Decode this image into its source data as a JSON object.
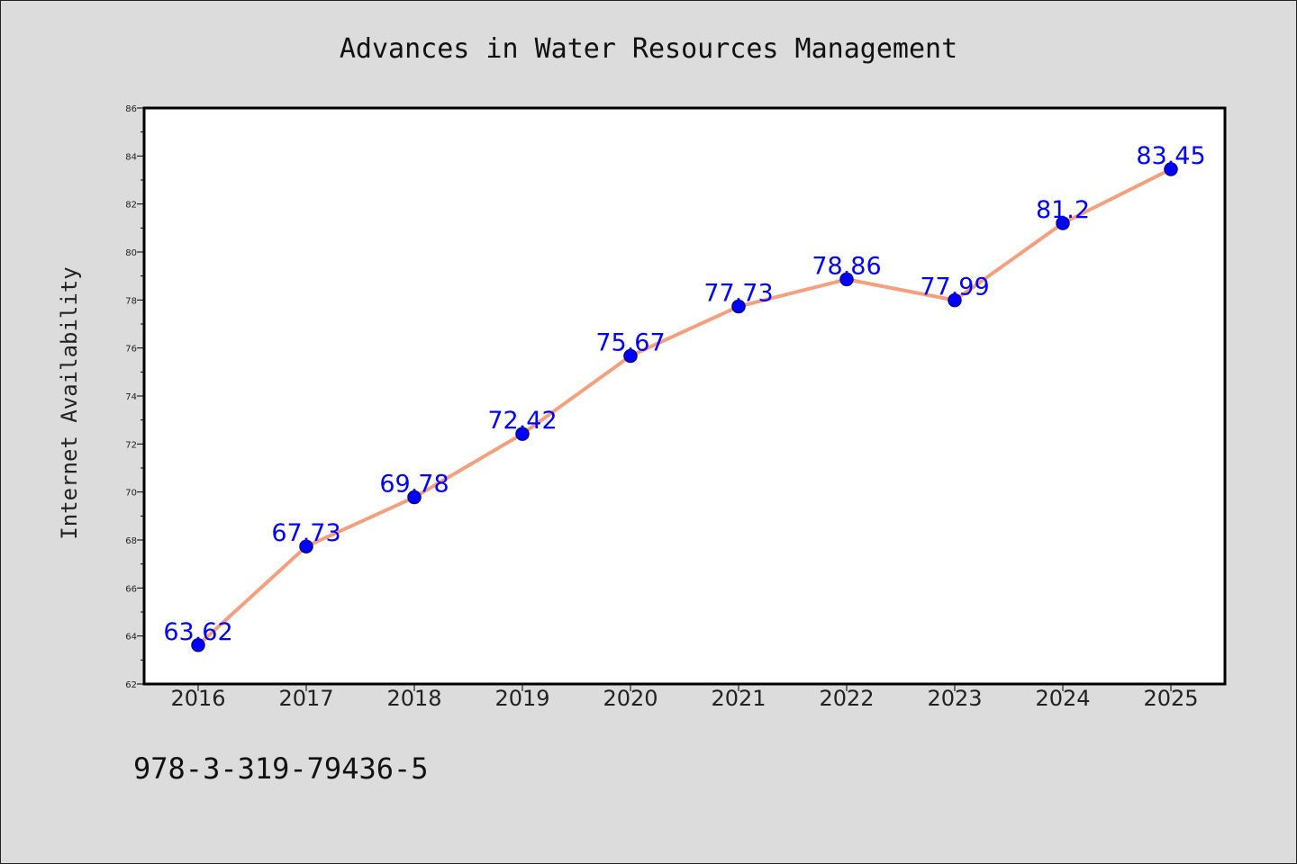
{
  "chart_data": {
    "type": "line",
    "title": "Advances in Water Resources Management",
    "ylabel": "Internet Availability",
    "xlabel": "",
    "categories": [
      "2016",
      "2017",
      "2018",
      "2019",
      "2020",
      "2021",
      "2022",
      "2023",
      "2024",
      "2025"
    ],
    "values": [
      63.62,
      67.73,
      69.78,
      72.42,
      75.67,
      77.73,
      78.86,
      77.99,
      81.2,
      83.45
    ],
    "data_labels": [
      "63.62",
      "67.73",
      "69.78",
      "72.42",
      "75.67",
      "77.73",
      "78.86",
      "77.99",
      "81.2",
      "83.45"
    ],
    "ylim": [
      62,
      86
    ],
    "yticks": [
      "62",
      "64",
      "66",
      "68",
      "70",
      "72",
      "74",
      "76",
      "78",
      "80",
      "82",
      "84",
      "86"
    ],
    "grid": false,
    "colors": {
      "line": "#f4a07f",
      "marker": "#0000ff",
      "marker_edge": "#00008b",
      "data_label": "#0000ff",
      "background": "#dcdcdc",
      "plot_area": "#ffffff"
    }
  },
  "footer": {
    "isbn": "978-3-319-79436-5"
  }
}
